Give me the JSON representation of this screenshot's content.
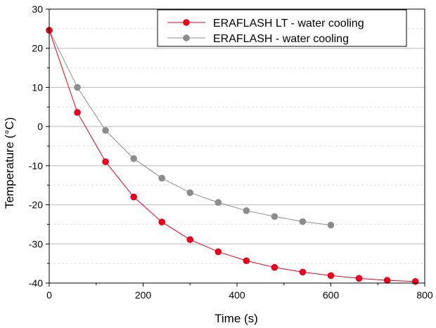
{
  "chart_data": {
    "type": "line",
    "title": "",
    "xlabel": "Time (s)",
    "ylabel": "Temperature (°C)",
    "xlim": [
      0,
      800
    ],
    "ylim": [
      -40,
      30
    ],
    "x_ticks": [
      0,
      200,
      400,
      600,
      800
    ],
    "y_ticks": [
      30,
      20,
      10,
      0,
      -10,
      -20,
      -30,
      -40
    ],
    "grid": true,
    "legend_position": "top-right",
    "series": [
      {
        "name": "ERAFLASH LT - water cooling",
        "color": "#e8001c",
        "x": [
          0,
          60,
          120,
          180,
          240,
          300,
          360,
          420,
          480,
          540,
          600,
          660,
          720,
          780
        ],
        "y": [
          24.6,
          3.6,
          -9.0,
          -18.0,
          -24.4,
          -28.9,
          -32.0,
          -34.3,
          -36.0,
          -37.2,
          -38.1,
          -38.8,
          -39.3,
          -39.6
        ]
      },
      {
        "name": "ERAFLASH - water cooling",
        "color": "#8c8c8c",
        "x": [
          0,
          60,
          120,
          180,
          240,
          300,
          360,
          420,
          480,
          540,
          600
        ],
        "y": [
          24.6,
          10.0,
          -1.0,
          -8.2,
          -13.2,
          -16.9,
          -19.4,
          -21.5,
          -23.0,
          -24.3,
          -25.2
        ]
      }
    ]
  }
}
